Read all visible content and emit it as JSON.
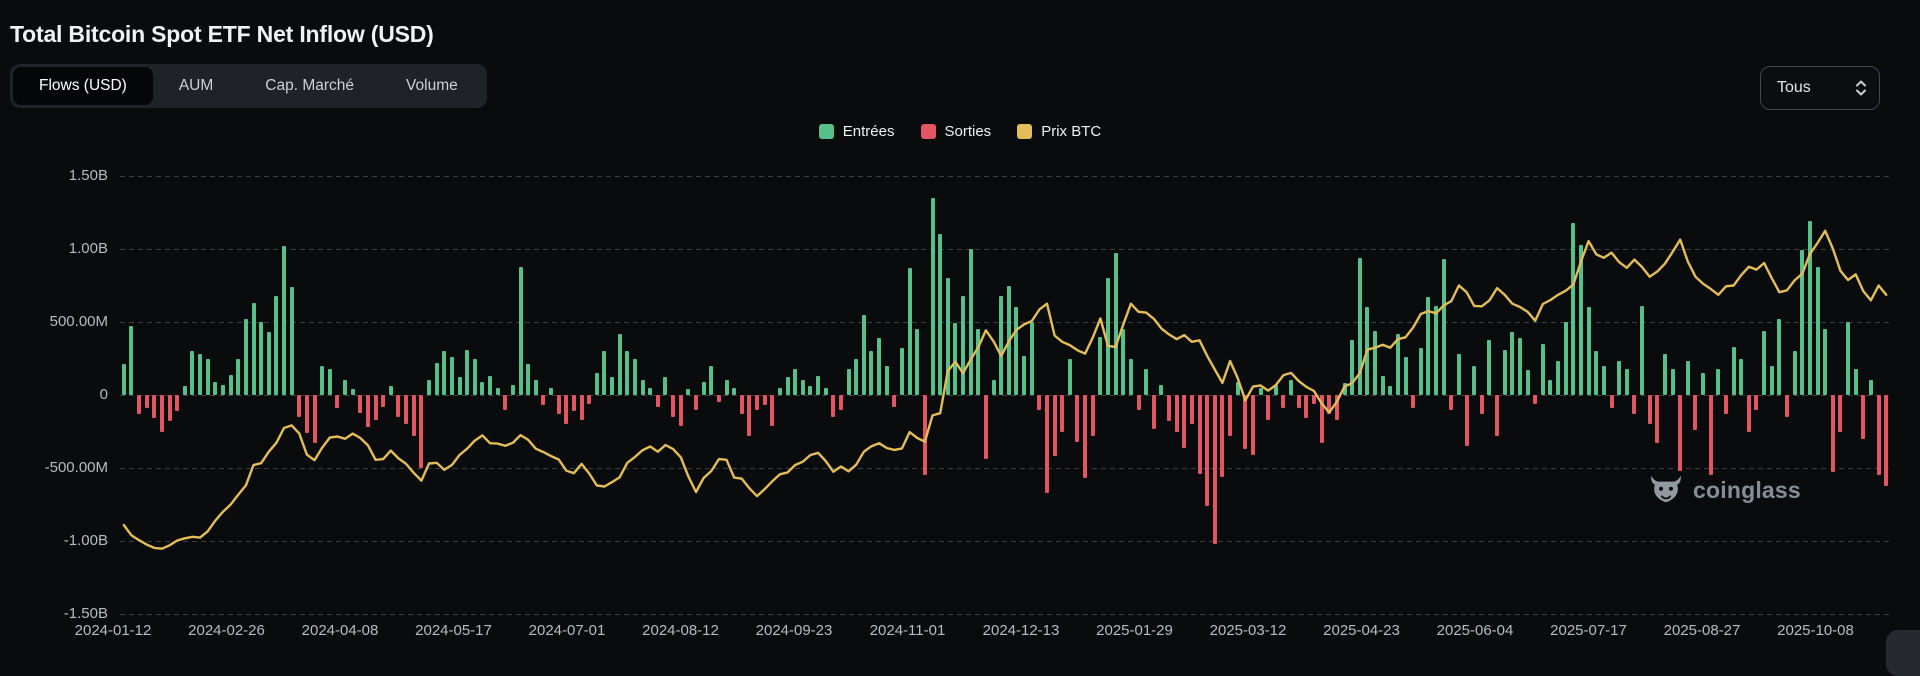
{
  "page": {
    "title": "Total Bitcoin Spot ETF Net Inflow (USD)"
  },
  "toolbar": {
    "tabs": [
      {
        "label": "Flows (USD)",
        "active": true
      },
      {
        "label": "AUM",
        "active": false
      },
      {
        "label": "Cap. Marché",
        "active": false
      },
      {
        "label": "Volume",
        "active": false
      }
    ],
    "range_select": {
      "value": "Tous"
    }
  },
  "legend": [
    {
      "label": "Entrées",
      "color": "#57c08a"
    },
    {
      "label": "Sorties",
      "color": "#e25563"
    },
    {
      "label": "Prix BTC",
      "color": "#e3bd58"
    }
  ],
  "watermark": {
    "text": "coinglass"
  },
  "chart_data": {
    "type": "bar+line",
    "title": "Total Bitcoin Spot ETF Net Inflow (USD)",
    "legend_position": "top-center",
    "grid": "dashed-horizontal",
    "date_range": [
      "2024-01-12",
      "2025-10-20"
    ],
    "x_tick_labels": [
      "2024-01-12",
      "2024-02-26",
      "2024-04-08",
      "2024-05-17",
      "2024-07-01",
      "2024-08-12",
      "2024-09-23",
      "2024-11-01",
      "2024-12-13",
      "2025-01-29",
      "2025-03-12",
      "2025-04-23",
      "2025-06-04",
      "2025-07-17",
      "2025-08-27",
      "2025-10-08"
    ],
    "y_axis": {
      "units": "USD",
      "range_b": [
        -1.5,
        1.5
      ],
      "ticks": [
        {
          "label": "1.50B",
          "value": 1.5
        },
        {
          "label": "1.00B",
          "value": 1.0
        },
        {
          "label": "500.00M",
          "value": 0.5
        },
        {
          "label": "0",
          "value": 0.0
        },
        {
          "label": "-500.00M",
          "value": -0.5
        },
        {
          "label": "-1.00B",
          "value": -1.0
        },
        {
          "label": "-1.50B",
          "value": -1.5
        }
      ]
    },
    "series": [
      {
        "name": "Entrées",
        "type": "bar",
        "color": "#57c08a"
      },
      {
        "name": "Sorties",
        "type": "bar",
        "color": "#e25563"
      },
      {
        "name": "Prix BTC",
        "type": "line",
        "color": "#e3bd58"
      }
    ],
    "net_flow_musd": [
      210,
      470,
      -130,
      -90,
      -160,
      -250,
      -180,
      -110,
      60,
      300,
      280,
      250,
      90,
      70,
      140,
      250,
      520,
      630,
      500,
      430,
      680,
      1020,
      740,
      -150,
      -260,
      -330,
      200,
      180,
      -90,
      100,
      40,
      -120,
      -220,
      -170,
      -80,
      60,
      -150,
      -200,
      -280,
      -500,
      100,
      220,
      300,
      260,
      120,
      310,
      250,
      90,
      130,
      50,
      -100,
      70,
      880,
      210,
      100,
      -70,
      50,
      -130,
      -200,
      -110,
      -170,
      -60,
      150,
      300,
      120,
      420,
      300,
      250,
      100,
      50,
      -80,
      120,
      -150,
      -210,
      40,
      -100,
      90,
      200,
      -50,
      100,
      50,
      -130,
      -280,
      -100,
      -70,
      -210,
      50,
      120,
      180,
      100,
      60,
      130,
      50,
      -150,
      -100,
      180,
      250,
      550,
      300,
      390,
      200,
      -80,
      320,
      870,
      450,
      -550,
      1350,
      1100,
      800,
      490,
      680,
      1000,
      450,
      -440,
      100,
      680,
      750,
      600,
      270,
      500,
      -100,
      -670,
      -420,
      -250,
      250,
      -320,
      -570,
      -280,
      400,
      800,
      970,
      450,
      250,
      -100,
      180,
      -230,
      70,
      -180,
      -250,
      -360,
      -200,
      -540,
      -760,
      -1020,
      -560,
      -280,
      90,
      -370,
      -410,
      50,
      -170,
      70,
      -90,
      100,
      -90,
      -160,
      -60,
      -330,
      -130,
      -170,
      80,
      380,
      940,
      600,
      440,
      130,
      60,
      420,
      260,
      -90,
      320,
      670,
      610,
      930,
      -100,
      280,
      -350,
      200,
      -130,
      380,
      -280,
      310,
      430,
      390,
      170,
      -60,
      350,
      100,
      230,
      500,
      1180,
      1030,
      600,
      300,
      200,
      -90,
      230,
      180,
      -130,
      610,
      -200,
      -330,
      280,
      180,
      -520,
      230,
      -240,
      150,
      -550,
      180,
      -130,
      330,
      250,
      -250,
      -100,
      440,
      200,
      520,
      -150,
      300,
      990,
      1190,
      880,
      450,
      -530,
      -250,
      500,
      180,
      -300,
      100,
      -550,
      -620
    ],
    "btc_price_kusd": [
      46.3,
      43.5,
      42.2,
      41.0,
      40.1,
      39.9,
      40.8,
      42.1,
      42.7,
      43.1,
      42.9,
      44.6,
      47.5,
      49.9,
      51.8,
      54.5,
      57.0,
      62.5,
      63.0,
      66.1,
      68.5,
      72.5,
      73.2,
      71.0,
      65.3,
      63.8,
      67.2,
      69.9,
      70.2,
      69.6,
      71.0,
      69.8,
      67.8,
      63.9,
      64.1,
      66.4,
      64.3,
      62.8,
      60.4,
      58.3,
      62.9,
      63.1,
      61.2,
      62.5,
      65.2,
      66.9,
      69.1,
      70.5,
      68.4,
      68.3,
      67.7,
      68.5,
      70.6,
      69.3,
      66.9,
      66.0,
      64.9,
      64.0,
      61.0,
      60.3,
      62.8,
      60.2,
      57.0,
      56.7,
      57.9,
      59.2,
      63.1,
      64.7,
      66.5,
      67.5,
      66.1,
      67.9,
      66.8,
      64.6,
      59.4,
      55.2,
      59.0,
      60.9,
      64.1,
      63.9,
      59.1,
      58.8,
      56.2,
      54.1,
      56.0,
      58.1,
      60.0,
      60.5,
      62.5,
      63.4,
      65.2,
      65.8,
      63.6,
      60.7,
      62.1,
      60.8,
      62.6,
      66.1,
      67.6,
      68.4,
      67.1,
      66.6,
      67.0,
      71.4,
      69.8,
      68.8,
      75.9,
      76.5,
      87.9,
      90.4,
      87.3,
      91.0,
      94.3,
      98.9,
      95.9,
      92.0,
      95.9,
      99.0,
      100.5,
      101.4,
      104.5,
      106.1,
      97.5,
      95.8,
      94.9,
      93.5,
      92.6,
      96.9,
      102.1,
      94.7,
      94.4,
      100.5,
      106.1,
      103.9,
      103.7,
      102.0,
      99.4,
      97.8,
      96.5,
      97.6,
      95.8,
      96.2,
      92.0,
      88.3,
      84.7,
      90.6,
      86.0,
      80.0,
      83.7,
      84.0,
      82.6,
      84.1,
      86.8,
      87.4,
      85.2,
      83.6,
      82.5,
      79.2,
      76.7,
      79.6,
      83.7,
      84.6,
      87.3,
      93.7,
      94.2,
      95.0,
      94.2,
      96.5,
      97.0,
      99.7,
      103.3,
      104.1,
      103.5,
      105.6,
      106.8,
      111.0,
      109.2,
      105.5,
      105.4,
      107.0,
      110.3,
      108.5,
      106.1,
      105.2,
      103.9,
      101.5,
      106.0,
      107.1,
      108.5,
      109.6,
      111.3,
      117.5,
      123.0,
      119.4,
      118.5,
      119.9,
      117.3,
      115.8,
      118.0,
      116.0,
      113.4,
      114.8,
      116.9,
      120.1,
      123.4,
      117.5,
      113.4,
      111.5,
      110.1,
      108.5,
      110.8,
      111.0,
      113.8,
      116.1,
      115.3,
      117.1,
      113.0,
      109.2,
      109.7,
      112.4,
      114.2,
      119.5,
      122.5,
      125.8,
      121.0,
      115.0,
      112.5,
      114.0,
      109.5,
      107.0,
      111.0,
      108.5
    ],
    "price_line_scale": {
      "price_kusd_domain": [
        40,
        126
      ],
      "maps_to_flow_b": [
        -1.05,
        1.13
      ]
    }
  }
}
